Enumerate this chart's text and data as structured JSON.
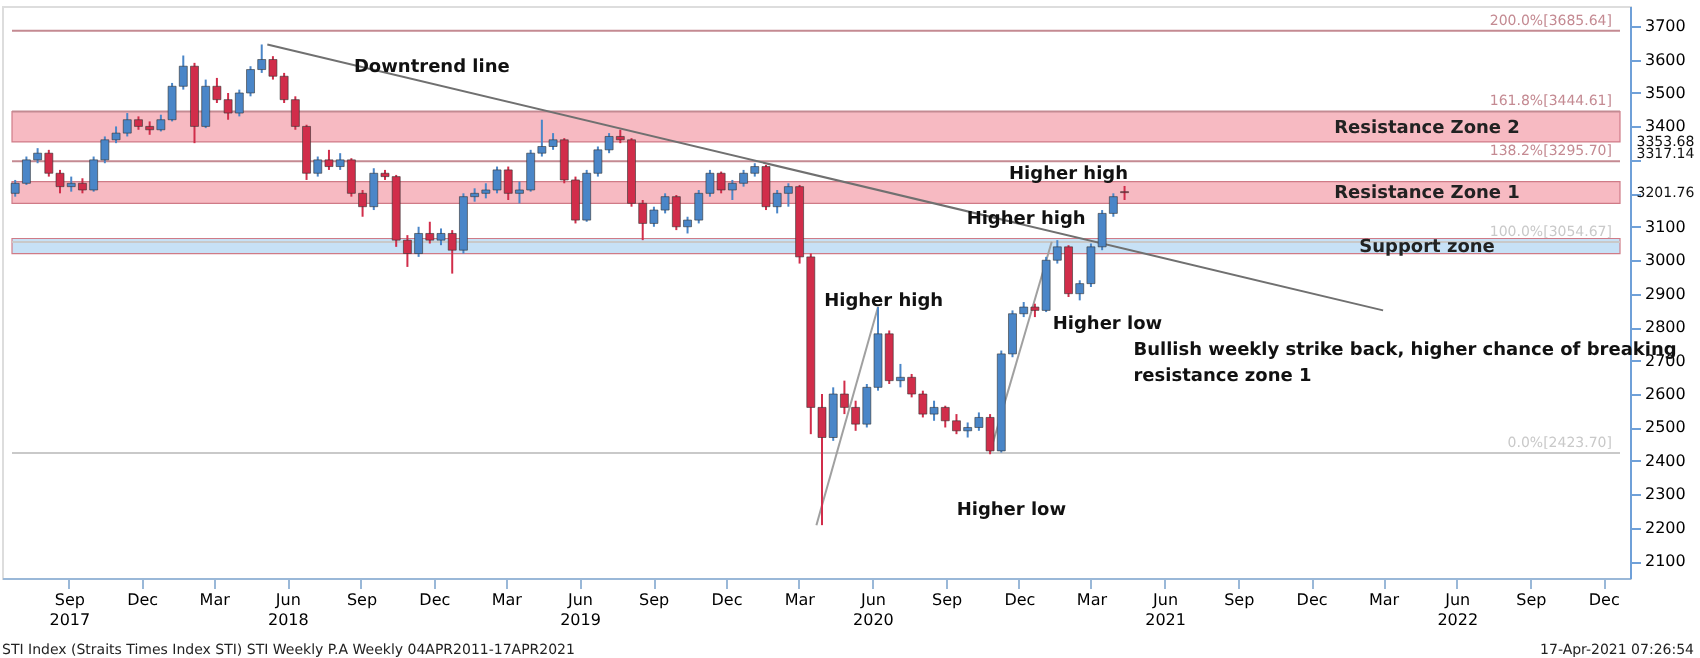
{
  "chart_data": {
    "type": "candlestick",
    "x": [
      "2017-06-26",
      "2017-07-10",
      "2017-07-24",
      "2017-08-07",
      "2017-08-21",
      "2017-09-04",
      "2017-09-18",
      "2017-10-02",
      "2017-10-16",
      "2017-10-30",
      "2017-11-13",
      "2017-11-27",
      "2017-12-11",
      "2017-12-25",
      "2018-01-08",
      "2018-01-22",
      "2018-02-05",
      "2018-02-19",
      "2018-03-05",
      "2018-03-19",
      "2018-04-02",
      "2018-04-16",
      "2018-04-30",
      "2018-05-14",
      "2018-05-28",
      "2018-06-11",
      "2018-06-25",
      "2018-07-09",
      "2018-07-23",
      "2018-08-06",
      "2018-08-20",
      "2018-09-03",
      "2018-09-17",
      "2018-10-01",
      "2018-10-15",
      "2018-10-29",
      "2018-11-12",
      "2018-11-26",
      "2018-12-10",
      "2018-12-24",
      "2019-01-07",
      "2019-01-21",
      "2019-02-04",
      "2019-02-18",
      "2019-03-04",
      "2019-03-18",
      "2019-04-01",
      "2019-04-15",
      "2019-04-29",
      "2019-05-13",
      "2019-05-27",
      "2019-06-10",
      "2019-06-24",
      "2019-07-08",
      "2019-07-22",
      "2019-08-05",
      "2019-08-19",
      "2019-09-02",
      "2019-09-16",
      "2019-09-30",
      "2019-10-14",
      "2019-10-28",
      "2019-11-11",
      "2019-11-25",
      "2019-12-09",
      "2019-12-23",
      "2020-01-06",
      "2020-01-20",
      "2020-02-03",
      "2020-02-17",
      "2020-03-02",
      "2020-03-16",
      "2020-03-30",
      "2020-04-13",
      "2020-04-27",
      "2020-05-11",
      "2020-05-25",
      "2020-06-08",
      "2020-06-22",
      "2020-07-06",
      "2020-07-20",
      "2020-08-03",
      "2020-08-17",
      "2020-08-31",
      "2020-09-14",
      "2020-09-28",
      "2020-10-12",
      "2020-10-26",
      "2020-11-09",
      "2020-11-23",
      "2020-12-07",
      "2020-12-21",
      "2021-01-04",
      "2021-01-18",
      "2021-02-01",
      "2021-02-15",
      "2021-03-01",
      "2021-03-15",
      "2021-03-29",
      "2021-04-12"
    ],
    "ohlc": [
      [
        3200,
        3240,
        3190,
        3230
      ],
      [
        3230,
        3310,
        3225,
        3300
      ],
      [
        3300,
        3335,
        3290,
        3320
      ],
      [
        3320,
        3330,
        3250,
        3260
      ],
      [
        3260,
        3270,
        3200,
        3220
      ],
      [
        3220,
        3250,
        3205,
        3230
      ],
      [
        3230,
        3245,
        3200,
        3210
      ],
      [
        3210,
        3310,
        3205,
        3300
      ],
      [
        3300,
        3370,
        3290,
        3360
      ],
      [
        3360,
        3400,
        3350,
        3380
      ],
      [
        3380,
        3440,
        3370,
        3420
      ],
      [
        3420,
        3430,
        3390,
        3400
      ],
      [
        3400,
        3415,
        3375,
        3390
      ],
      [
        3390,
        3435,
        3385,
        3420
      ],
      [
        3420,
        3530,
        3415,
        3520
      ],
      [
        3520,
        3612,
        3510,
        3580
      ],
      [
        3580,
        3590,
        3350,
        3400
      ],
      [
        3400,
        3540,
        3395,
        3520
      ],
      [
        3520,
        3545,
        3470,
        3480
      ],
      [
        3480,
        3500,
        3420,
        3440
      ],
      [
        3440,
        3510,
        3430,
        3500
      ],
      [
        3500,
        3580,
        3490,
        3570
      ],
      [
        3570,
        3645,
        3560,
        3600
      ],
      [
        3600,
        3610,
        3540,
        3550
      ],
      [
        3550,
        3560,
        3470,
        3480
      ],
      [
        3480,
        3490,
        3390,
        3400
      ],
      [
        3400,
        3405,
        3240,
        3260
      ],
      [
        3260,
        3310,
        3250,
        3300
      ],
      [
        3300,
        3330,
        3270,
        3280
      ],
      [
        3280,
        3320,
        3270,
        3300
      ],
      [
        3300,
        3305,
        3190,
        3200
      ],
      [
        3200,
        3210,
        3130,
        3160
      ],
      [
        3160,
        3275,
        3150,
        3260
      ],
      [
        3260,
        3270,
        3240,
        3250
      ],
      [
        3250,
        3255,
        3040,
        3060
      ],
      [
        3060,
        3075,
        2980,
        3020
      ],
      [
        3020,
        3100,
        3010,
        3080
      ],
      [
        3080,
        3115,
        3050,
        3060
      ],
      [
        3060,
        3095,
        3045,
        3080
      ],
      [
        3080,
        3090,
        2960,
        3030
      ],
      [
        3030,
        3200,
        3020,
        3190
      ],
      [
        3190,
        3215,
        3175,
        3200
      ],
      [
        3200,
        3230,
        3185,
        3210
      ],
      [
        3210,
        3280,
        3200,
        3270
      ],
      [
        3270,
        3280,
        3180,
        3200
      ],
      [
        3200,
        3235,
        3170,
        3210
      ],
      [
        3210,
        3330,
        3205,
        3320
      ],
      [
        3320,
        3420,
        3310,
        3340
      ],
      [
        3340,
        3380,
        3330,
        3360
      ],
      [
        3360,
        3365,
        3230,
        3240
      ],
      [
        3240,
        3250,
        3110,
        3120
      ],
      [
        3120,
        3270,
        3115,
        3260
      ],
      [
        3260,
        3340,
        3250,
        3330
      ],
      [
        3330,
        3380,
        3320,
        3370
      ],
      [
        3370,
        3390,
        3350,
        3360
      ],
      [
        3360,
        3365,
        3160,
        3170
      ],
      [
        3170,
        3180,
        3060,
        3110
      ],
      [
        3110,
        3160,
        3100,
        3150
      ],
      [
        3150,
        3200,
        3140,
        3190
      ],
      [
        3190,
        3195,
        3090,
        3100
      ],
      [
        3100,
        3130,
        3080,
        3120
      ],
      [
        3120,
        3210,
        3110,
        3200
      ],
      [
        3200,
        3270,
        3190,
        3260
      ],
      [
        3260,
        3265,
        3200,
        3210
      ],
      [
        3210,
        3240,
        3180,
        3230
      ],
      [
        3230,
        3270,
        3220,
        3260
      ],
      [
        3260,
        3290,
        3250,
        3280
      ],
      [
        3280,
        3285,
        3150,
        3160
      ],
      [
        3160,
        3210,
        3140,
        3200
      ],
      [
        3200,
        3230,
        3160,
        3220
      ],
      [
        3220,
        3225,
        2990,
        3010
      ],
      [
        3010,
        3020,
        2480,
        2560
      ],
      [
        2560,
        2600,
        2208,
        2470
      ],
      [
        2470,
        2620,
        2460,
        2600
      ],
      [
        2600,
        2640,
        2540,
        2560
      ],
      [
        2560,
        2580,
        2490,
        2510
      ],
      [
        2510,
        2630,
        2500,
        2620
      ],
      [
        2620,
        2860,
        2610,
        2780
      ],
      [
        2780,
        2790,
        2630,
        2640
      ],
      [
        2640,
        2690,
        2620,
        2650
      ],
      [
        2650,
        2660,
        2590,
        2600
      ],
      [
        2600,
        2610,
        2530,
        2540
      ],
      [
        2540,
        2580,
        2520,
        2560
      ],
      [
        2560,
        2565,
        2500,
        2520
      ],
      [
        2520,
        2540,
        2480,
        2490
      ],
      [
        2490,
        2515,
        2470,
        2500
      ],
      [
        2500,
        2545,
        2490,
        2530
      ],
      [
        2530,
        2540,
        2420,
        2430
      ],
      [
        2430,
        2730,
        2425,
        2720
      ],
      [
        2720,
        2850,
        2710,
        2840
      ],
      [
        2840,
        2875,
        2830,
        2860
      ],
      [
        2860,
        2870,
        2830,
        2850
      ],
      [
        2850,
        3010,
        2845,
        3000
      ],
      [
        3000,
        3060,
        2990,
        3040
      ],
      [
        3040,
        3045,
        2890,
        2900
      ],
      [
        2900,
        2940,
        2880,
        2930
      ],
      [
        2930,
        3050,
        2920,
        3040
      ],
      [
        3040,
        3150,
        3030,
        3140
      ],
      [
        3140,
        3200,
        3130,
        3190
      ],
      [
        3205,
        3222,
        3180,
        3202
      ]
    ],
    "colors": [
      "#4a86c8",
      "#4a86c8",
      "#4a86c8",
      "#d12d4a",
      "#d12d4a",
      "#4a86c8",
      "#d12d4a",
      "#4a86c8",
      "#4a86c8",
      "#4a86c8",
      "#4a86c8",
      "#d12d4a",
      "#d12d4a",
      "#4a86c8",
      "#4a86c8",
      "#4a86c8",
      "#d12d4a",
      "#4a86c8",
      "#d12d4a",
      "#d12d4a",
      "#4a86c8",
      "#4a86c8",
      "#4a86c8",
      "#d12d4a",
      "#d12d4a",
      "#d12d4a",
      "#d12d4a",
      "#4a86c8",
      "#d12d4a",
      "#4a86c8",
      "#d12d4a",
      "#d12d4a",
      "#4a86c8",
      "#d12d4a",
      "#d12d4a",
      "#d12d4a",
      "#4a86c8",
      "#d12d4a",
      "#4a86c8",
      "#d12d4a",
      "#4a86c8",
      "#4a86c8",
      "#4a86c8",
      "#4a86c8",
      "#d12d4a",
      "#4a86c8",
      "#4a86c8",
      "#4a86c8",
      "#4a86c8",
      "#d12d4a",
      "#d12d4a",
      "#4a86c8",
      "#4a86c8",
      "#4a86c8",
      "#d12d4a",
      "#d12d4a",
      "#d12d4a",
      "#4a86c8",
      "#4a86c8",
      "#d12d4a",
      "#4a86c8",
      "#4a86c8",
      "#4a86c8",
      "#d12d4a",
      "#4a86c8",
      "#4a86c8",
      "#4a86c8",
      "#d12d4a",
      "#4a86c8",
      "#4a86c8",
      "#d12d4a",
      "#d12d4a",
      "#d12d4a",
      "#4a86c8",
      "#d12d4a",
      "#d12d4a",
      "#4a86c8",
      "#4a86c8",
      "#d12d4a",
      "#4a86c8",
      "#d12d4a",
      "#d12d4a",
      "#4a86c8",
      "#d12d4a",
      "#d12d4a",
      "#4a86c8",
      "#4a86c8",
      "#d12d4a",
      "#4a86c8",
      "#4a86c8",
      "#4a86c8",
      "#d12d4a",
      "#4a86c8",
      "#4a86c8",
      "#d12d4a",
      "#4a86c8",
      "#4a86c8",
      "#4a86c8",
      "#4a86c8",
      "#d12d4a"
    ],
    "series": [
      {
        "type": "line",
        "x": [
          "2018-05-07",
          "2022-03-01"
        ],
        "values": [
          3645,
          2850
        ],
        "color": "#707070"
      },
      {
        "type": "line",
        "x": [
          "2020-03-23",
          "2020-06-08"
        ],
        "values": [
          2208,
          2860
        ],
        "color": "#a0a0a0"
      },
      {
        "type": "line",
        "x": [
          "2020-10-26",
          "2021-01-11"
        ],
        "values": [
          2425,
          3055
        ],
        "color": "#a0a0a0"
      }
    ],
    "xlim": [
      "2017-06-22",
      "2022-12-22"
    ],
    "ylim": [
      2050,
      3760
    ],
    "xticks": [
      {
        "value": "2017-09-01",
        "label": "Sep\n2017"
      },
      {
        "value": "2017-12-01",
        "label": "Dec"
      },
      {
        "value": "2018-03-01",
        "label": "Mar"
      },
      {
        "value": "2018-06-01",
        "label": "Jun\n2018"
      },
      {
        "value": "2018-09-01",
        "label": "Sep"
      },
      {
        "value": "2018-12-01",
        "label": "Dec"
      },
      {
        "value": "2019-03-01",
        "label": "Mar"
      },
      {
        "value": "2019-06-01",
        "label": "Jun\n2019"
      },
      {
        "value": "2019-09-01",
        "label": "Sep"
      },
      {
        "value": "2019-12-01",
        "label": "Dec"
      },
      {
        "value": "2020-03-01",
        "label": "Mar"
      },
      {
        "value": "2020-06-01",
        "label": "Jun\n2020"
      },
      {
        "value": "2020-09-01",
        "label": "Sep"
      },
      {
        "value": "2020-12-01",
        "label": "Dec"
      },
      {
        "value": "2021-03-01",
        "label": "Mar"
      },
      {
        "value": "2021-06-01",
        "label": "Jun\n2021"
      },
      {
        "value": "2021-09-01",
        "label": "Sep"
      },
      {
        "value": "2021-12-01",
        "label": "Dec"
      },
      {
        "value": "2022-03-01",
        "label": "Mar"
      },
      {
        "value": "2022-06-01",
        "label": "Jun\n2022"
      },
      {
        "value": "2022-09-01",
        "label": "Sep"
      },
      {
        "value": "2022-12-01",
        "label": "Dec"
      }
    ],
    "yticks": [
      2100,
      2200,
      2300,
      2400,
      2500,
      2600,
      2700,
      2800,
      2900,
      3000,
      3100,
      {
        "value": 3200,
        "label": null
      },
      {
        "value": 3300,
        "label": null
      },
      3400,
      3500,
      3600,
      3700
    ],
    "grid": false,
    "bands": [
      {
        "axis": "y",
        "from": 3353.68,
        "to": 3444.61,
        "label": "Resistance Zone 2",
        "color": "#f5a3ae"
      },
      {
        "axis": "y",
        "from": 3170,
        "to": 3235,
        "label": "Resistance Zone 1",
        "color": "#f5a3ae"
      },
      {
        "axis": "y",
        "from": 3020,
        "to": 3065,
        "label": "Support zone",
        "color": "#b5d8f3"
      }
    ],
    "ref_lines": [
      {
        "axis": "y",
        "value": 3685.64,
        "label": "200.0%[3685.64]",
        "color": "#c48a92"
      },
      {
        "axis": "y",
        "value": 3444.61,
        "label": "161.8%[3444.61]",
        "color": "#c48a92"
      },
      {
        "axis": "y",
        "value": 3295.7,
        "label": "138.2%[3295.70]",
        "color": "#c48a92"
      },
      {
        "axis": "y",
        "value": 3054.67,
        "label": "100.0%[3054.67]",
        "color": "#c9c9c9"
      },
      {
        "axis": "y",
        "value": 2423.7,
        "label": "0.0%[2423.70]",
        "color": "#c9c9c9"
      }
    ],
    "annotations": [
      "Downtrend line",
      {
        "text": "Higher high",
        "x": "2020-06-15",
        "y": 2880
      },
      "Higher low",
      {
        "text": "Higher high",
        "x": "2020-12-10",
        "y": 3125
      },
      "Higher low",
      {
        "text": "Higher high",
        "x": "2021-02-01",
        "y": 3262
      },
      "Bullish weekly strike back, higher chance of breaking\nresistance zone 1",
      "3353.68",
      "3317.14",
      "3201.76",
      "STI Index (Straits Times Index STI) STI Weekly P.A  Weekly 04APR2011-17APR2021",
      "17-Apr-2021 07:26:54"
    ]
  }
}
